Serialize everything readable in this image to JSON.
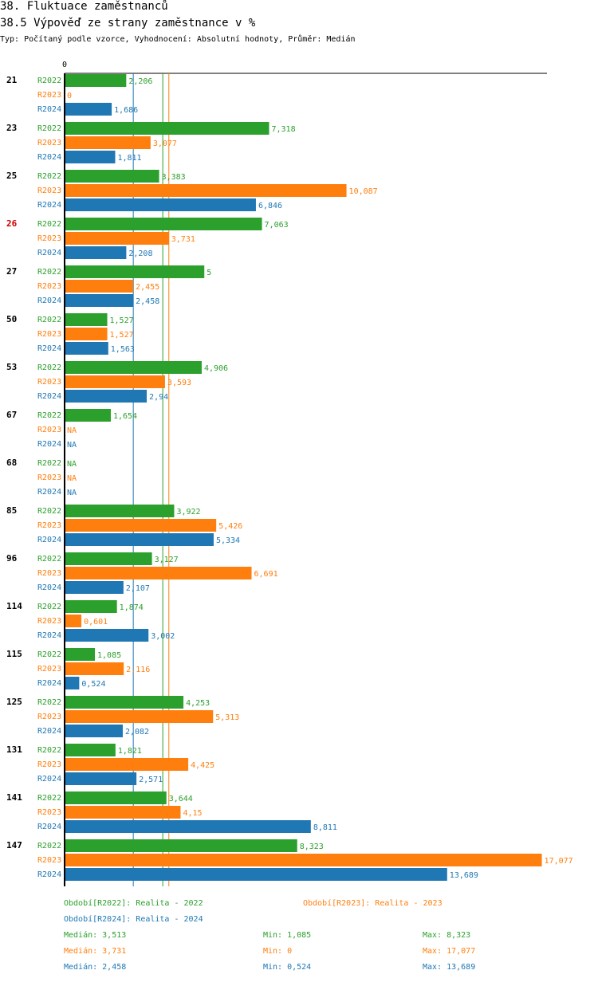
{
  "header": {
    "title": "38. Fluktuace zaměstnanců",
    "subtitle": "38.5 Výpověď ze strany zaměstnance v %",
    "description": "Typ: Počítaný podle vzorce, Vyhodnocení: Absolutní hodnoty, Průměr: Medián"
  },
  "colors": {
    "R2022": "#2ca02c",
    "R2023": "#ff7f0e",
    "R2024": "#1f77b4",
    "highlight": "#cc0000"
  },
  "chart_data": {
    "type": "bar",
    "orientation": "horizontal",
    "axis_zero_label": "0",
    "xlim": [
      0,
      17.077
    ],
    "highlight_category": "26",
    "categories": [
      "21",
      "23",
      "25",
      "26",
      "27",
      "50",
      "53",
      "67",
      "68",
      "85",
      "96",
      "114",
      "115",
      "125",
      "131",
      "141",
      "147"
    ],
    "series": [
      {
        "name": "R2022",
        "values": [
          2.206,
          7.318,
          3.383,
          7.063,
          5,
          1.527,
          4.906,
          1.654,
          null,
          3.922,
          3.127,
          1.874,
          1.085,
          4.253,
          1.821,
          3.644,
          8.323
        ],
        "labels": [
          "2,206",
          "7,318",
          "3,383",
          "7,063",
          "5",
          "1,527",
          "4,906",
          "1,654",
          "NA",
          "3,922",
          "3,127",
          "1,874",
          "1,085",
          "4,253",
          "1,821",
          "3,644",
          "8,323"
        ]
      },
      {
        "name": "R2023",
        "values": [
          0,
          3.077,
          10.087,
          3.731,
          2.455,
          1.527,
          3.593,
          null,
          null,
          5.426,
          6.691,
          0.601,
          2.116,
          5.313,
          4.425,
          4.15,
          17.077
        ],
        "labels": [
          "0",
          "3,077",
          "10,087",
          "3,731",
          "2,455",
          "1,527",
          "3,593",
          "NA",
          "NA",
          "5,426",
          "6,691",
          "0,601",
          "2,116",
          "5,313",
          "4,425",
          "4,15",
          "17,077"
        ]
      },
      {
        "name": "R2024",
        "values": [
          1.686,
          1.811,
          6.846,
          2.208,
          2.458,
          1.563,
          2.94,
          null,
          null,
          5.334,
          2.107,
          3.002,
          0.524,
          2.082,
          2.571,
          8.811,
          13.689
        ],
        "labels": [
          "1,686",
          "1,811",
          "6,846",
          "2,208",
          "2,458",
          "1,563",
          "2,94",
          "NA",
          "NA",
          "5,334",
          "2,107",
          "3,002",
          "0,524",
          "2,082",
          "2,571",
          "8,811",
          "13,689"
        ]
      }
    ],
    "reference_lines": [
      {
        "series": "R2022",
        "value": 3.513
      },
      {
        "series": "R2023",
        "value": 3.731
      },
      {
        "series": "R2024",
        "value": 2.458
      }
    ]
  },
  "legend": {
    "r2022": "Období[R2022]: Realita - 2022",
    "r2023": "Období[R2023]: Realita - 2023",
    "r2024": "Období[R2024]: Realita - 2024"
  },
  "stats": {
    "r2022": {
      "median": "Medián: 3,513",
      "min": "Min: 1,085",
      "max": "Max: 8,323"
    },
    "r2023": {
      "median": "Medián: 3,731",
      "min": "Min: 0",
      "max": "Max: 17,077"
    },
    "r2024": {
      "median": "Medián: 2,458",
      "min": "Min: 0,524",
      "max": "Max: 13,689"
    }
  }
}
